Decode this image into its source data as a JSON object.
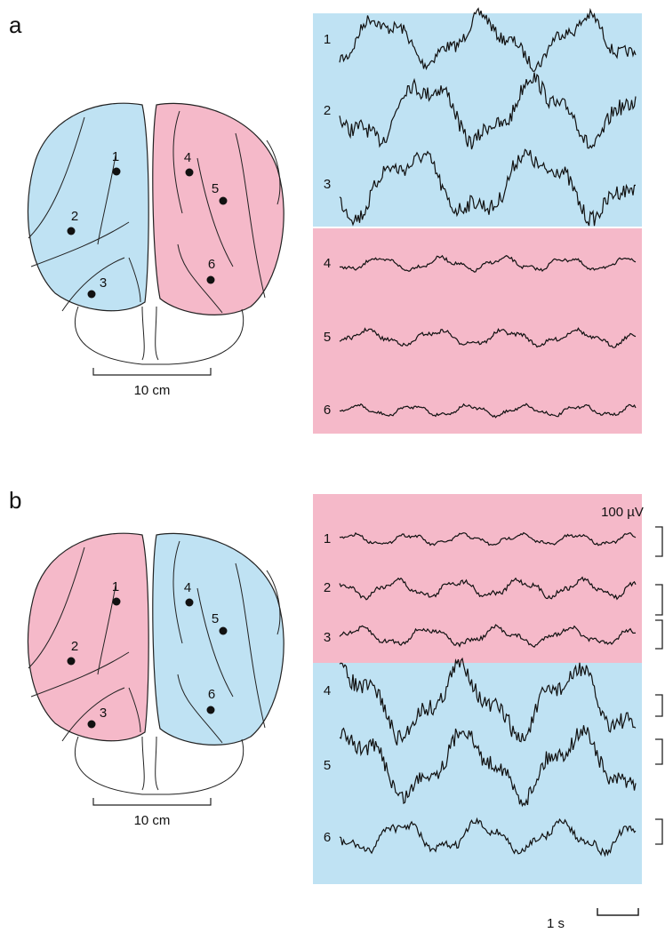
{
  "panels": [
    {
      "label": "a",
      "brain": {
        "electrodes": [
          "1",
          "2",
          "3",
          "4",
          "5",
          "6"
        ],
        "scale_label": "10 cm"
      },
      "traces": {
        "labels": [
          "1",
          "2",
          "3",
          "4",
          "5",
          "6"
        ]
      }
    },
    {
      "label": "b",
      "brain": {
        "electrodes": [
          "1",
          "2",
          "3",
          "4",
          "5",
          "6"
        ],
        "scale_label": "10 cm"
      },
      "traces": {
        "labels": [
          "1",
          "2",
          "3",
          "4",
          "5",
          "6"
        ]
      }
    }
  ],
  "scale_bars": {
    "voltage": "100 µV",
    "time": "1 s"
  }
}
